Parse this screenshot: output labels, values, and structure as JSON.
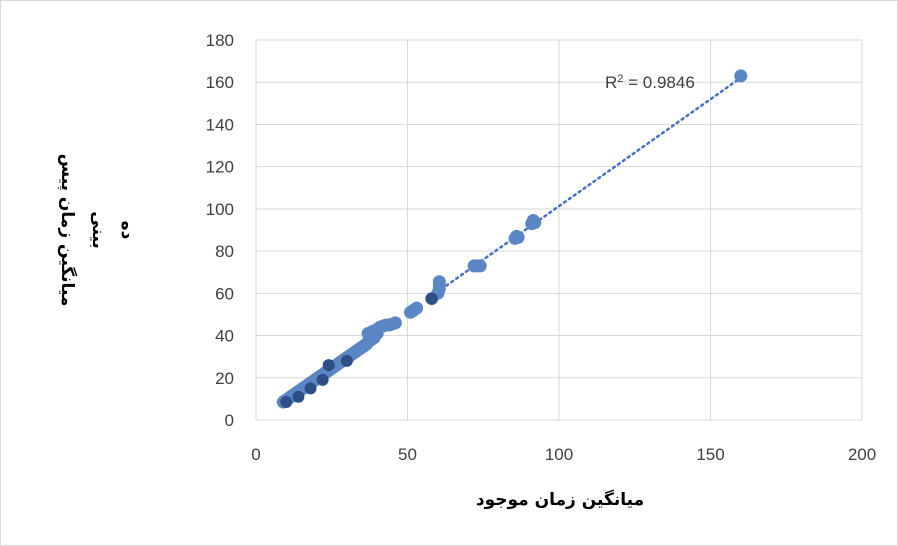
{
  "chart_data": {
    "type": "scatter",
    "xlabel": "میانگین زمان موجود",
    "ylabel_lines": [
      "میانگین زمان پیس",
      "بینی",
      "ده"
    ],
    "xlim": [
      0,
      200
    ],
    "ylim": [
      0,
      180
    ],
    "x_ticks": [
      0,
      50,
      100,
      150,
      200
    ],
    "y_ticks": [
      0,
      20,
      40,
      60,
      80,
      100,
      120,
      140,
      160,
      180
    ],
    "grid": "horizontal and vertical",
    "marker_color": "#5b86c5",
    "dark_marker_color": "#2e4f86",
    "trendline": {
      "type": "linear",
      "style": "dotted",
      "color": "#4472c4",
      "x_range": [
        58,
        160
      ],
      "label_text": "R",
      "label_exp": "2",
      "label_value": " = 0.9846"
    },
    "points": [
      {
        "x": 9,
        "y": 8.5
      },
      {
        "x": 9.5,
        "y": 9
      },
      {
        "x": 10,
        "y": 9.5
      },
      {
        "x": 10.5,
        "y": 10
      },
      {
        "x": 11,
        "y": 10.5
      },
      {
        "x": 11.5,
        "y": 11
      },
      {
        "x": 12,
        "y": 11.5
      },
      {
        "x": 12.5,
        "y": 12
      },
      {
        "x": 13,
        "y": 12.5
      },
      {
        "x": 13.5,
        "y": 13
      },
      {
        "x": 14,
        "y": 13.5
      },
      {
        "x": 14.5,
        "y": 14
      },
      {
        "x": 15,
        "y": 14.5
      },
      {
        "x": 15.5,
        "y": 15
      },
      {
        "x": 16,
        "y": 15.5
      },
      {
        "x": 16.5,
        "y": 16
      },
      {
        "x": 17,
        "y": 16.5
      },
      {
        "x": 17.5,
        "y": 17
      },
      {
        "x": 18,
        "y": 17.5
      },
      {
        "x": 18.5,
        "y": 18
      },
      {
        "x": 19,
        "y": 18.5
      },
      {
        "x": 19.5,
        "y": 19
      },
      {
        "x": 20,
        "y": 19.5
      },
      {
        "x": 20.5,
        "y": 20
      },
      {
        "x": 21,
        "y": 20.5
      },
      {
        "x": 21.5,
        "y": 21
      },
      {
        "x": 22,
        "y": 21.5
      },
      {
        "x": 22.5,
        "y": 22
      },
      {
        "x": 23,
        "y": 22.5
      },
      {
        "x": 23.5,
        "y": 23
      },
      {
        "x": 24,
        "y": 23.5
      },
      {
        "x": 24.5,
        "y": 24
      },
      {
        "x": 25,
        "y": 24.5
      },
      {
        "x": 25.5,
        "y": 25
      },
      {
        "x": 26,
        "y": 25.5
      },
      {
        "x": 26.5,
        "y": 26
      },
      {
        "x": 27,
        "y": 26.5
      },
      {
        "x": 27.5,
        "y": 27
      },
      {
        "x": 28,
        "y": 27.5
      },
      {
        "x": 28.5,
        "y": 28
      },
      {
        "x": 29,
        "y": 28.5
      },
      {
        "x": 29.5,
        "y": 29
      },
      {
        "x": 30,
        "y": 29.5
      },
      {
        "x": 30.5,
        "y": 30
      },
      {
        "x": 31,
        "y": 30.5
      },
      {
        "x": 31.5,
        "y": 31
      },
      {
        "x": 32,
        "y": 31.5
      },
      {
        "x": 32.5,
        "y": 32
      },
      {
        "x": 33,
        "y": 32.5
      },
      {
        "x": 33.5,
        "y": 33
      },
      {
        "x": 34,
        "y": 33.5
      },
      {
        "x": 34.5,
        "y": 34
      },
      {
        "x": 35,
        "y": 34.5
      },
      {
        "x": 35.5,
        "y": 35
      },
      {
        "x": 36,
        "y": 35.5
      },
      {
        "x": 36.5,
        "y": 36
      },
      {
        "x": 37,
        "y": 37
      },
      {
        "x": 38,
        "y": 38
      },
      {
        "x": 39,
        "y": 39
      },
      {
        "x": 40,
        "y": 41
      },
      {
        "x": 37,
        "y": 41
      },
      {
        "x": 38.5,
        "y": 42
      },
      {
        "x": 40,
        "y": 43
      },
      {
        "x": 41,
        "y": 44
      },
      {
        "x": 42,
        "y": 44.5
      },
      {
        "x": 43,
        "y": 45
      },
      {
        "x": 44,
        "y": 45
      },
      {
        "x": 45,
        "y": 45.5
      },
      {
        "x": 46,
        "y": 46
      },
      {
        "x": 51,
        "y": 51
      },
      {
        "x": 52,
        "y": 52
      },
      {
        "x": 53,
        "y": 53
      },
      {
        "x": 58,
        "y": 57.5
      },
      {
        "x": 60,
        "y": 60
      },
      {
        "x": 60.5,
        "y": 62
      },
      {
        "x": 60.5,
        "y": 64
      },
      {
        "x": 60.5,
        "y": 65.5
      },
      {
        "x": 72,
        "y": 73
      },
      {
        "x": 73,
        "y": 73
      },
      {
        "x": 74,
        "y": 73
      },
      {
        "x": 85.5,
        "y": 86
      },
      {
        "x": 86,
        "y": 87
      },
      {
        "x": 86.5,
        "y": 86.5
      },
      {
        "x": 91,
        "y": 93
      },
      {
        "x": 91.5,
        "y": 94.5
      },
      {
        "x": 92,
        "y": 93.5
      },
      {
        "x": 160,
        "y": 163
      }
    ],
    "dark_points": [
      {
        "x": 10,
        "y": 8.5
      },
      {
        "x": 14,
        "y": 11
      },
      {
        "x": 18,
        "y": 15
      },
      {
        "x": 22,
        "y": 19
      },
      {
        "x": 24,
        "y": 26
      },
      {
        "x": 30,
        "y": 28
      },
      {
        "x": 58,
        "y": 57.5
      }
    ]
  }
}
